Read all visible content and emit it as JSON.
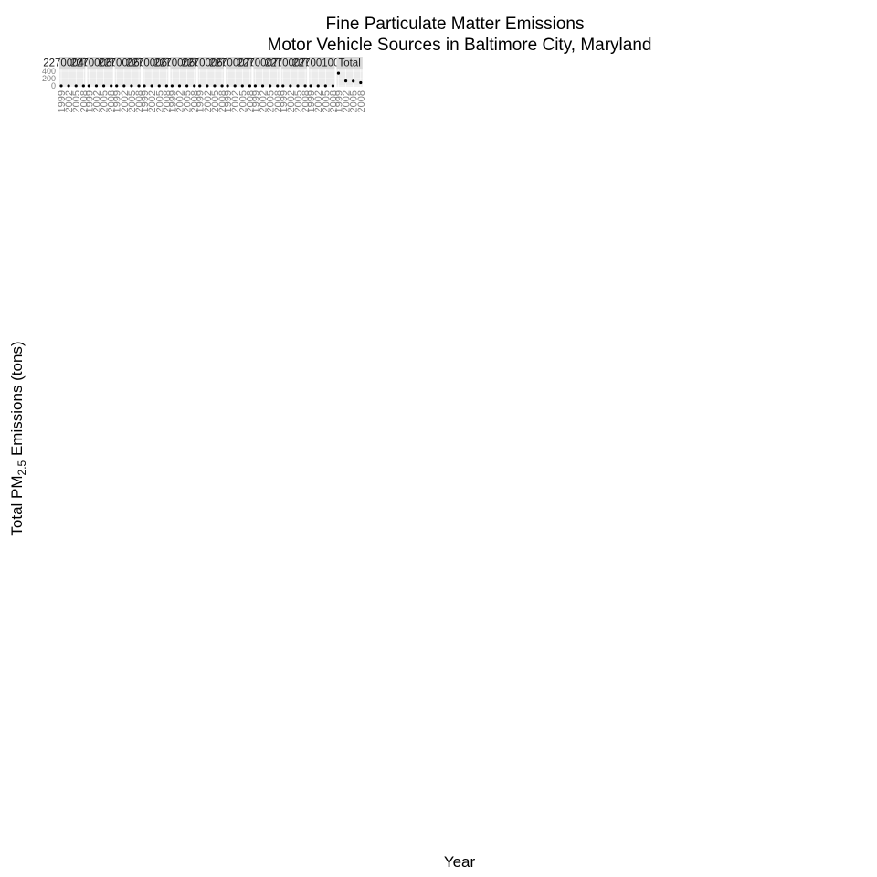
{
  "chart_data": {
    "type": "scatter",
    "title": "Fine Particulate Matter Emissions",
    "subtitle": "Motor Vehicle Sources in Baltimore City, Maryland",
    "xlabel": "Year",
    "ylabel_prefix": "Total PM",
    "ylabel_sub": "2.5",
    "ylabel_suffix": " Emissions (tons)",
    "x_ticks": [
      "1999",
      "2002",
      "2005",
      "2008"
    ],
    "y_ticks": [
      "0",
      "200",
      "400"
    ],
    "ylim": [
      0,
      450
    ],
    "grid": true,
    "legend": "none",
    "facet_columns": 29,
    "panels": [
      {
        "label": "2270004070",
        "x": [
          1999,
          2002,
          2005,
          2008
        ],
        "y": [
          2,
          2,
          2,
          2
        ]
      },
      {
        "label": "2270006005",
        "x": [
          1999,
          2002,
          2005,
          2008
        ],
        "y": [
          2,
          2,
          2,
          2
        ]
      },
      {
        "label": "2270006010",
        "x": [
          1999,
          2002,
          2005,
          2008
        ],
        "y": [
          2,
          2,
          2,
          2
        ]
      },
      {
        "label": "2270006015",
        "x": [
          1999,
          2002,
          2005,
          2008
        ],
        "y": [
          2,
          2,
          2,
          2
        ]
      },
      {
        "label": "2270006025",
        "x": [
          1999,
          2002,
          2005,
          2008
        ],
        "y": [
          2,
          2,
          2,
          2
        ]
      },
      {
        "label": "2270006030",
        "x": [
          1999,
          2002,
          2005,
          2008
        ],
        "y": [
          2,
          2,
          2,
          2
        ]
      },
      {
        "label": "2270007010",
        "x": [
          1999,
          2002,
          2005,
          2008
        ],
        "y": [
          2,
          2,
          2,
          2
        ]
      },
      {
        "label": "2270007015",
        "x": [
          1999,
          2002,
          2005,
          2008
        ],
        "y": [
          2,
          2,
          2,
          2
        ]
      },
      {
        "label": "2270007020",
        "x": [
          1999,
          2002,
          2005,
          2008
        ],
        "y": [
          2,
          2,
          2,
          2
        ]
      },
      {
        "label": "2270010010",
        "x": [
          1999,
          2002,
          2005,
          2008
        ],
        "y": [
          2,
          2,
          2,
          2
        ]
      },
      {
        "label": "Total",
        "x": [
          1999,
          2002,
          2005,
          2008
        ],
        "y": [
          346,
          134,
          130,
          88
        ]
      }
    ]
  }
}
